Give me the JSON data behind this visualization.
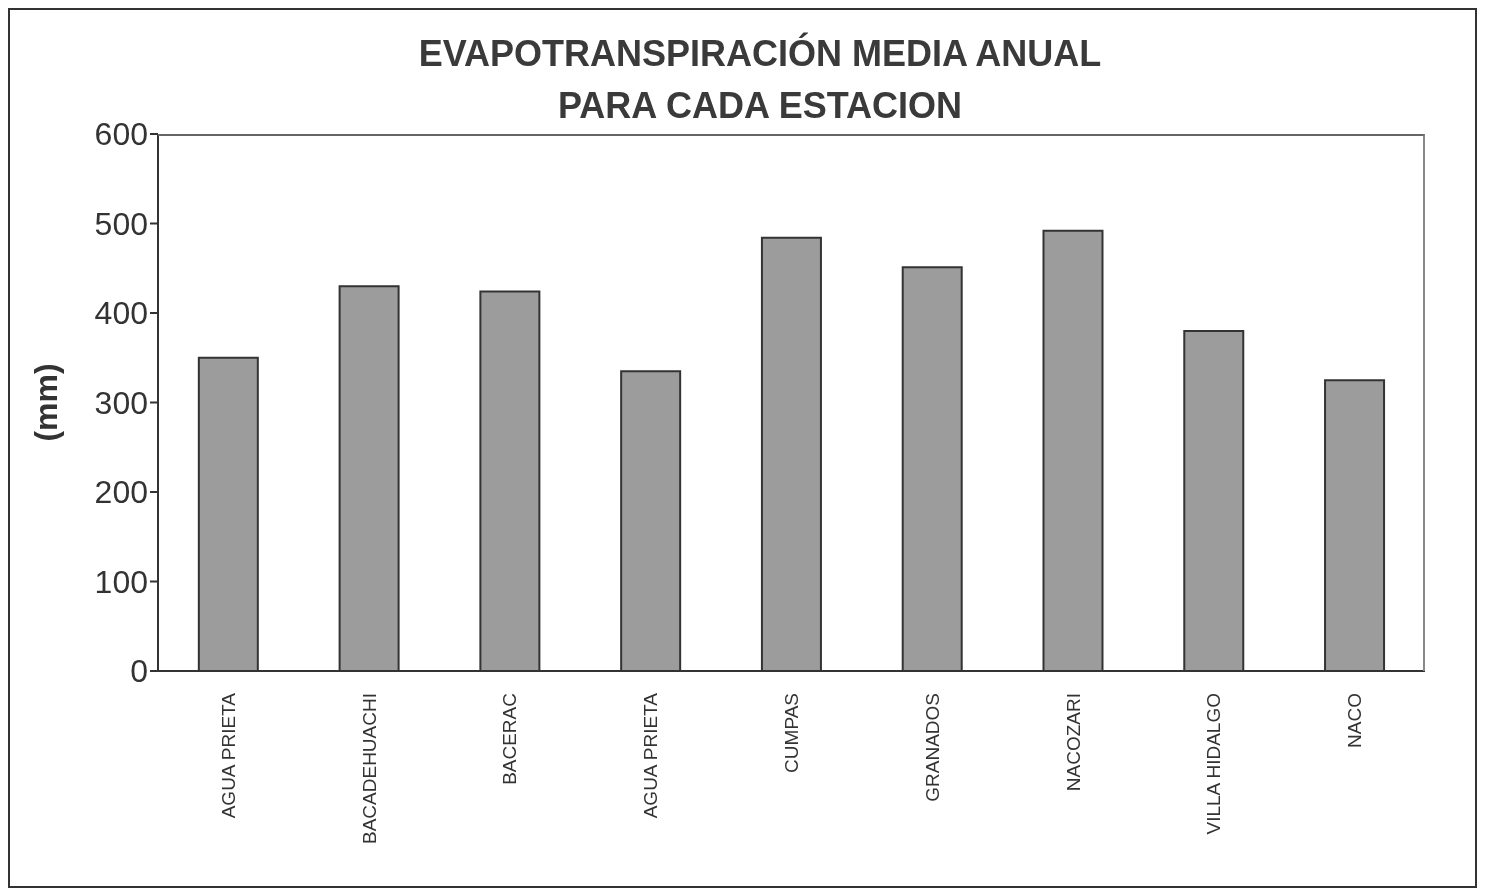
{
  "chart_data": {
    "type": "bar",
    "title": "EVAPOTRANSPIRACIÓN MEDIA ANUAL\nPARA CADA ESTACION",
    "ylabel": "(mm)",
    "categories": [
      "AGUA PRIETA",
      "BACADEHUACHI",
      "BACERAC",
      "AGUA PRIETA",
      "CUMPAS",
      "GRANADOS",
      "NACOZARI",
      "VILLA HIDALGO",
      "NACO"
    ],
    "values": [
      350,
      430,
      424,
      335,
      484,
      451,
      492,
      380,
      325
    ],
    "color": "#9c9c9c",
    "ylim": [
      0,
      600
    ],
    "yticks": [
      0,
      100,
      200,
      300,
      400,
      500,
      600
    ]
  }
}
